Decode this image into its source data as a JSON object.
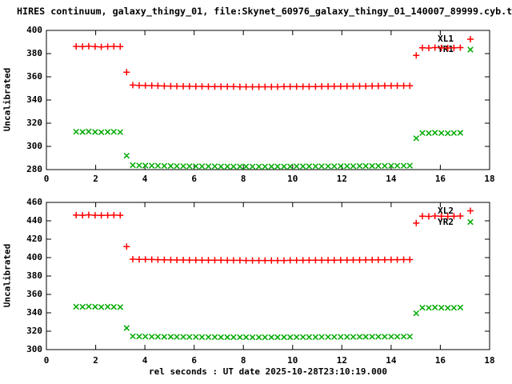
{
  "title": "HIRES continuum, galaxy_thingy_01, file:Skynet_60976_galaxy_thingy_01_140007_89999.cyb.ts",
  "xlabel": "rel seconds : UT date 2025-10-28T23:10:19.000",
  "background": "#ffffff",
  "foreground": "#000000",
  "series_colors": {
    "plus_series": "#ff0000",
    "cross_series": "#00aa00"
  },
  "chart_data": [
    {
      "type": "scatter",
      "panel": "top",
      "ylabel": "Uncalibrated",
      "xlim": [
        0,
        18
      ],
      "ylim": [
        280,
        400
      ],
      "xticks": [
        0,
        2,
        4,
        6,
        8,
        10,
        12,
        14,
        16,
        18
      ],
      "yticks": [
        280,
        300,
        320,
        340,
        360,
        380,
        400
      ],
      "grid": false,
      "legend_position": "top-right",
      "x": [
        1.21,
        1.47,
        1.72,
        1.98,
        2.23,
        2.49,
        2.74,
        3.0,
        3.26,
        3.51,
        3.77,
        4.02,
        4.28,
        4.53,
        4.79,
        5.05,
        5.3,
        5.56,
        5.81,
        6.07,
        6.32,
        6.58,
        6.84,
        7.09,
        7.35,
        7.6,
        7.86,
        8.11,
        8.37,
        8.63,
        8.88,
        9.14,
        9.39,
        9.65,
        9.9,
        10.16,
        10.42,
        10.67,
        10.93,
        11.18,
        11.44,
        11.69,
        11.95,
        12.21,
        12.46,
        12.72,
        12.97,
        13.23,
        13.48,
        13.74,
        14.0,
        14.25,
        14.51,
        14.76,
        15.02,
        15.27,
        15.53,
        15.78,
        16.04,
        16.3,
        16.55,
        16.81
      ],
      "series": [
        {
          "name": "XL1",
          "marker": "plus",
          "color": "#ff0000",
          "y": [
            386.2,
            386.0,
            386.4,
            386.0,
            385.8,
            386.0,
            386.2,
            386.0,
            364.0,
            352.8,
            352.6,
            352.5,
            352.4,
            352.2,
            352.1,
            352.0,
            351.9,
            351.8,
            351.8,
            351.7,
            351.7,
            351.6,
            351.6,
            351.5,
            351.5,
            351.5,
            351.4,
            351.4,
            351.4,
            351.4,
            351.4,
            351.4,
            351.4,
            351.5,
            351.5,
            351.5,
            351.5,
            351.6,
            351.6,
            351.7,
            351.7,
            351.8,
            351.8,
            351.9,
            351.9,
            352.0,
            352.0,
            352.1,
            352.1,
            352.2,
            352.2,
            352.2,
            352.3,
            352.3,
            378.5,
            385.0,
            384.8,
            385.2,
            385.0,
            384.8,
            385.0,
            385.2
          ]
        },
        {
          "name": "YR1",
          "marker": "cross",
          "color": "#00aa00",
          "y": [
            312.6,
            312.4,
            312.8,
            312.4,
            312.2,
            312.5,
            312.6,
            312.3,
            292.0,
            283.8,
            283.6,
            283.5,
            283.4,
            283.3,
            283.2,
            283.1,
            283.0,
            283.0,
            282.9,
            282.9,
            282.8,
            282.8,
            282.8,
            282.7,
            282.7,
            282.7,
            282.7,
            282.7,
            282.6,
            282.6,
            282.6,
            282.7,
            282.7,
            282.7,
            282.7,
            282.8,
            282.8,
            282.8,
            282.8,
            282.9,
            282.9,
            282.9,
            283.0,
            283.0,
            283.0,
            283.1,
            283.1,
            283.1,
            283.2,
            283.2,
            283.3,
            283.3,
            283.3,
            283.4,
            307.0,
            311.6,
            311.4,
            311.8,
            311.5,
            311.3,
            311.5,
            311.7
          ]
        }
      ]
    },
    {
      "type": "scatter",
      "panel": "bottom",
      "ylabel": "Uncalibrated",
      "xlim": [
        0,
        18
      ],
      "ylim": [
        300,
        460
      ],
      "xticks": [
        0,
        2,
        4,
        6,
        8,
        10,
        12,
        14,
        16,
        18
      ],
      "yticks": [
        300,
        320,
        340,
        360,
        380,
        400,
        420,
        440,
        460
      ],
      "grid": false,
      "legend_position": "top-right",
      "x": [
        1.21,
        1.47,
        1.72,
        1.98,
        2.23,
        2.49,
        2.74,
        3.0,
        3.26,
        3.51,
        3.77,
        4.02,
        4.28,
        4.53,
        4.79,
        5.05,
        5.3,
        5.56,
        5.81,
        6.07,
        6.32,
        6.58,
        6.84,
        7.09,
        7.35,
        7.6,
        7.86,
        8.11,
        8.37,
        8.63,
        8.88,
        9.14,
        9.39,
        9.65,
        9.9,
        10.16,
        10.42,
        10.67,
        10.93,
        11.18,
        11.44,
        11.69,
        11.95,
        12.21,
        12.46,
        12.72,
        12.97,
        13.23,
        13.48,
        13.74,
        14.0,
        14.25,
        14.51,
        14.76,
        15.02,
        15.27,
        15.53,
        15.78,
        16.04,
        16.3,
        16.55,
        16.81
      ],
      "series": [
        {
          "name": "XL2",
          "marker": "plus",
          "color": "#ff0000",
          "y": [
            446.2,
            446.0,
            446.4,
            446.0,
            445.8,
            446.0,
            446.2,
            446.0,
            412.0,
            398.3,
            398.1,
            398.0,
            397.9,
            397.7,
            397.6,
            397.5,
            397.4,
            397.4,
            397.3,
            397.3,
            397.2,
            397.2,
            397.1,
            397.1,
            397.0,
            397.0,
            397.0,
            396.9,
            396.9,
            396.9,
            396.9,
            396.9,
            396.9,
            396.9,
            397.0,
            397.0,
            397.0,
            397.1,
            397.1,
            397.1,
            397.2,
            397.2,
            397.3,
            397.3,
            397.4,
            397.4,
            397.5,
            397.5,
            397.6,
            397.6,
            397.7,
            397.7,
            397.8,
            397.8,
            437.5,
            445.0,
            444.8,
            445.2,
            445.0,
            444.8,
            445.0,
            445.2
          ]
        },
        {
          "name": "YR2",
          "marker": "cross",
          "color": "#00aa00",
          "y": [
            346.6,
            346.4,
            346.9,
            346.5,
            346.3,
            346.6,
            346.4,
            346.2,
            323.5,
            314.5,
            314.3,
            314.2,
            314.1,
            314.0,
            313.9,
            313.9,
            313.8,
            313.8,
            313.7,
            313.7,
            313.6,
            313.6,
            313.6,
            313.5,
            313.5,
            313.5,
            313.5,
            313.5,
            313.4,
            313.4,
            313.4,
            313.5,
            313.5,
            313.5,
            313.5,
            313.6,
            313.6,
            313.6,
            313.6,
            313.7,
            313.7,
            313.7,
            313.8,
            313.8,
            313.8,
            313.9,
            313.9,
            314.0,
            314.0,
            314.0,
            314.1,
            314.1,
            314.2,
            314.2,
            339.5,
            345.6,
            345.4,
            345.8,
            345.5,
            345.3,
            345.5,
            345.7
          ]
        }
      ]
    }
  ]
}
